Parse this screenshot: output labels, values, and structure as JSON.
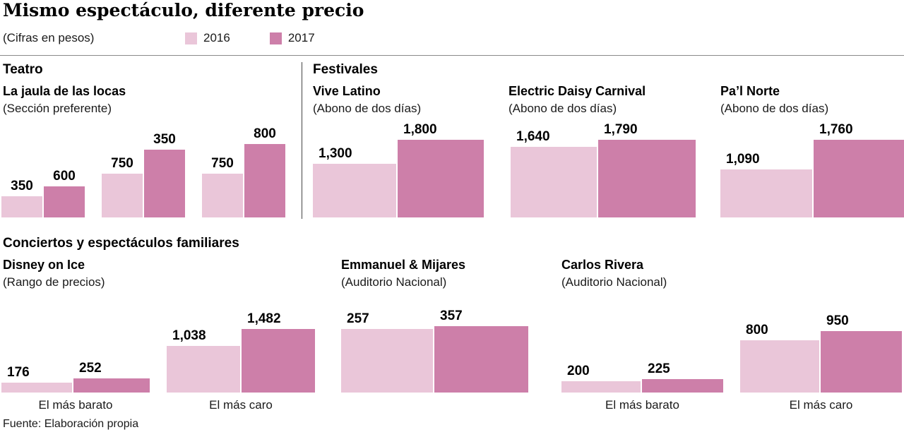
{
  "page": {
    "title": "Mismo espectáculo, diferente precio",
    "subtitle": "(Cifras en pesos)",
    "source": "Fuente: Elaboración propia"
  },
  "colors": {
    "y2016": "#eac6d9",
    "y2017": "#cd7fa9"
  },
  "legend": {
    "items": [
      {
        "label": "2016",
        "color": "#eac6d9"
      },
      {
        "label": "2017",
        "color": "#cd7fa9"
      }
    ]
  },
  "sections": {
    "teatro": {
      "label": "Teatro"
    },
    "festivales": {
      "label": "Festivales"
    },
    "conciertos": {
      "label": "Conciertos y espectáculos familiares"
    }
  },
  "chart_data": [
    {
      "id": "jaula",
      "type": "bar",
      "section": "Teatro",
      "title": "La jaula de las locas",
      "subtitle": "(Sección preferente)",
      "series_labels": [
        "2016",
        "2017"
      ],
      "pairs": [
        {
          "labels": [
            "350",
            "600"
          ],
          "values": [
            350,
            600
          ],
          "heights": [
            30,
            44
          ],
          "widths": [
            58,
            58
          ]
        },
        {
          "labels": [
            "750",
            "350"
          ],
          "values": [
            750,
            350
          ],
          "heights": [
            62,
            96
          ],
          "widths": [
            58,
            58
          ]
        },
        {
          "labels": [
            "750",
            "800"
          ],
          "values": [
            750,
            800
          ],
          "heights": [
            62,
            104
          ],
          "widths": [
            58,
            58
          ]
        }
      ]
    },
    {
      "id": "vive",
      "type": "bar",
      "section": "Festivales",
      "title": "Vive Latino",
      "subtitle": "(Abono de dos días)",
      "series_labels": [
        "2016",
        "2017"
      ],
      "pairs": [
        {
          "labels": [
            "1,300",
            "1,800"
          ],
          "values": [
            1300,
            1800
          ],
          "heights": [
            76,
            110
          ],
          "widths": [
            118,
            122
          ]
        }
      ]
    },
    {
      "id": "edc",
      "type": "bar",
      "section": "Festivales",
      "title": "Electric Daisy Carnival",
      "subtitle": "(Abono de dos días)",
      "series_labels": [
        "2016",
        "2017"
      ],
      "pairs": [
        {
          "labels": [
            "1,640",
            "1,790"
          ],
          "values": [
            1640,
            1790
          ],
          "heights": [
            100,
            110
          ],
          "widths": [
            122,
            138
          ]
        }
      ]
    },
    {
      "id": "pal",
      "type": "bar",
      "section": "Festivales",
      "title": "Pa’l Norte",
      "subtitle": "(Abono de dos días)",
      "series_labels": [
        "2016",
        "2017"
      ],
      "pairs": [
        {
          "labels": [
            "1,090",
            "1,760"
          ],
          "values": [
            1090,
            1760
          ],
          "heights": [
            68,
            110
          ],
          "widths": [
            130,
            130
          ]
        }
      ]
    },
    {
      "id": "disney",
      "type": "bar",
      "section": "Conciertos y espectáculos familiares",
      "title": "Disney on Ice",
      "subtitle": "(Rango de precios)",
      "series_labels": [
        "2016",
        "2017"
      ],
      "pairs": [
        {
          "labels": [
            "176",
            "252"
          ],
          "values": [
            176,
            252
          ],
          "heights": [
            14,
            20
          ],
          "widths": [
            100,
            108
          ],
          "axis_label": "El más barato"
        },
        {
          "labels": [
            "1,038",
            "1,482"
          ],
          "values": [
            1038,
            1482
          ],
          "heights": [
            66,
            90
          ],
          "widths": [
            104,
            104
          ],
          "axis_label": "El más caro"
        }
      ]
    },
    {
      "id": "emmanuel",
      "type": "bar",
      "section": "Conciertos y espectáculos familiares",
      "title": "Emmanuel & Mijares",
      "subtitle": "(Auditorio Nacional)",
      "series_labels": [
        "2016",
        "2017"
      ],
      "pairs": [
        {
          "labels": [
            "257",
            "357"
          ],
          "values": [
            257,
            357
          ],
          "heights": [
            90,
            94
          ],
          "widths": [
            130,
            133
          ]
        }
      ]
    },
    {
      "id": "carlos",
      "type": "bar",
      "section": "Conciertos y espectáculos familiares",
      "title": "Carlos Rivera",
      "subtitle": "(Auditorio Nacional)",
      "series_labels": [
        "2016",
        "2017"
      ],
      "pairs": [
        {
          "labels": [
            "200",
            "225"
          ],
          "values": [
            200,
            225
          ],
          "heights": [
            16,
            19
          ],
          "widths": [
            112,
            115
          ],
          "axis_label": "El más barato"
        },
        {
          "labels": [
            "800",
            "950"
          ],
          "values": [
            800,
            950
          ],
          "heights": [
            74,
            87
          ],
          "widths": [
            112,
            115
          ],
          "axis_label": "El más caro"
        }
      ]
    }
  ]
}
